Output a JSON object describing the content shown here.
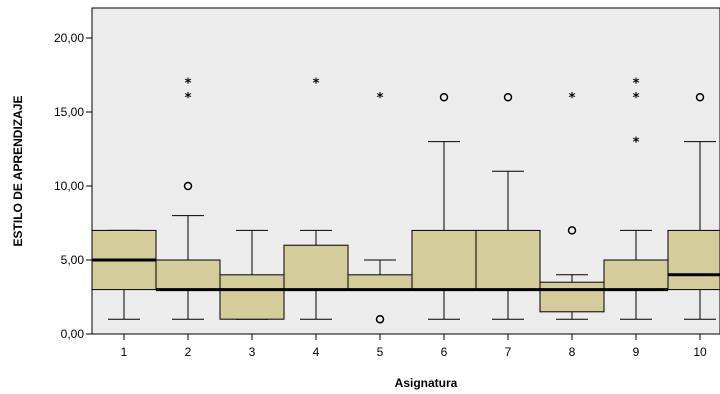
{
  "chart_data": {
    "type": "boxplot",
    "xlabel": "Asignatura",
    "ylabel": "ESTILO DE APRENDIZAJE",
    "ylim": [
      0,
      22
    ],
    "yticks": [
      0,
      5,
      10,
      15,
      20
    ],
    "ytick_labels": [
      "0,00",
      "5,00",
      "10,00",
      "15,00",
      "20,00"
    ],
    "grid": false,
    "box_color": "#d5cc9c",
    "plot_background": "#ececec",
    "categories": [
      "1",
      "2",
      "3",
      "4",
      "5",
      "6",
      "7",
      "8",
      "9",
      "10"
    ],
    "boxes": [
      {
        "category": "1",
        "whisker_low": 1,
        "q1": 3,
        "median": 5,
        "q3": 7,
        "whisker_high": 7,
        "outliers_circle": [],
        "outliers_star": []
      },
      {
        "category": "2",
        "whisker_low": 1,
        "q1": 3,
        "median": 3,
        "q3": 5,
        "whisker_high": 8,
        "outliers_circle": [
          10
        ],
        "outliers_star": [
          16,
          17
        ]
      },
      {
        "category": "3",
        "whisker_low": 1,
        "q1": 1,
        "median": 3,
        "q3": 4,
        "whisker_high": 7,
        "outliers_circle": [],
        "outliers_star": []
      },
      {
        "category": "4",
        "whisker_low": 1,
        "q1": 3,
        "median": 3,
        "q3": 6,
        "whisker_high": 7,
        "outliers_circle": [],
        "outliers_star": [
          17
        ]
      },
      {
        "category": "5",
        "whisker_low": 3,
        "q1": 3,
        "median": 3,
        "q3": 4,
        "whisker_high": 5,
        "outliers_circle": [
          1
        ],
        "outliers_star": [
          16
        ]
      },
      {
        "category": "6",
        "whisker_low": 1,
        "q1": 3,
        "median": 3,
        "q3": 7,
        "whisker_high": 13,
        "outliers_circle": [
          16
        ],
        "outliers_star": []
      },
      {
        "category": "7",
        "whisker_low": 1,
        "q1": 3,
        "median": 3,
        "q3": 7,
        "whisker_high": 11,
        "outliers_circle": [
          16
        ],
        "outliers_star": []
      },
      {
        "category": "8",
        "whisker_low": 1,
        "q1": 1.5,
        "median": 3,
        "q3": 3.5,
        "whisker_high": 4,
        "outliers_circle": [
          7
        ],
        "outliers_star": [
          16
        ]
      },
      {
        "category": "9",
        "whisker_low": 1,
        "q1": 3,
        "median": 3,
        "q3": 5,
        "whisker_high": 7,
        "outliers_circle": [],
        "outliers_star": [
          13,
          16,
          17
        ]
      },
      {
        "category": "10",
        "whisker_low": 1,
        "q1": 3,
        "median": 4,
        "q3": 7,
        "whisker_high": 13,
        "outliers_circle": [
          16
        ],
        "outliers_star": []
      }
    ]
  }
}
